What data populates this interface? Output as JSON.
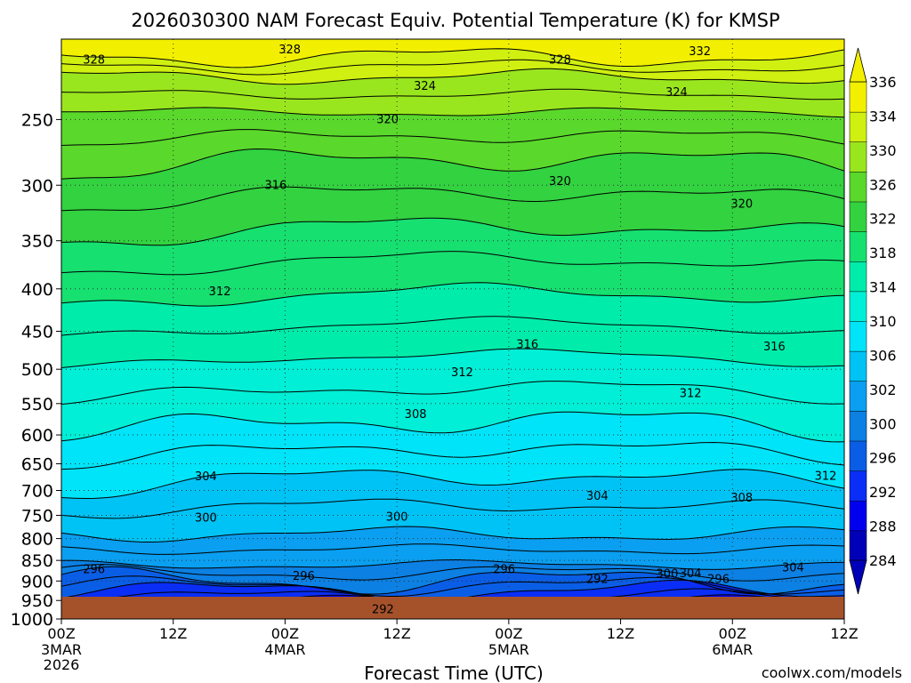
{
  "chart_data": {
    "type": "heatmap",
    "title": "2026030300 NAM Forecast Equiv. Potential Temperature (K) for KMSP",
    "xlabel": "Forecast Time (UTC)",
    "ylabel": "",
    "x_ticks": [
      {
        "label": "00Z",
        "sub": [
          "3MAR",
          "2026"
        ],
        "hour": 0
      },
      {
        "label": "12Z",
        "sub": [],
        "hour": 12
      },
      {
        "label": "00Z",
        "sub": [
          "4MAR"
        ],
        "hour": 24
      },
      {
        "label": "12Z",
        "sub": [],
        "hour": 36
      },
      {
        "label": "00Z",
        "sub": [
          "5MAR"
        ],
        "hour": 48
      },
      {
        "label": "12Z",
        "sub": [],
        "hour": 60
      },
      {
        "label": "00Z",
        "sub": [
          "6MAR"
        ],
        "hour": 72
      },
      {
        "label": "12Z",
        "sub": [],
        "hour": 84
      }
    ],
    "xlim": [
      0,
      84
    ],
    "y_ticks": [
      250,
      300,
      350,
      400,
      450,
      500,
      550,
      600,
      650,
      700,
      750,
      800,
      850,
      900,
      950,
      1000
    ],
    "ylim": [
      1000,
      200
    ],
    "y_scale": "log-pressure",
    "colorbar": {
      "labels": [
        "284",
        "288",
        "292",
        "296",
        "300",
        "302",
        "306",
        "310",
        "314",
        "318",
        "322",
        "326",
        "330",
        "334",
        "336"
      ],
      "colors": [
        "#0000b8",
        "#0000ee",
        "#0a2ef5",
        "#0a5ee6",
        "#0c80e3",
        "#0a9ff0",
        "#00c3f5",
        "#00e4f9",
        "#00efd6",
        "#00ecaa",
        "#16e070",
        "#32d240",
        "#5ad82c",
        "#9ae61e",
        "#cff011",
        "#f2f000"
      ],
      "extend": "both"
    },
    "contours": [
      {
        "label": "328",
        "x_hour": 3.5,
        "p": 212
      },
      {
        "label": "328",
        "x_hour": 24.5,
        "p": 206
      },
      {
        "label": "328",
        "x_hour": 53.5,
        "p": 212
      },
      {
        "label": "332",
        "x_hour": 68.5,
        "p": 207
      },
      {
        "label": "324",
        "x_hour": 39,
        "p": 228
      },
      {
        "label": "324",
        "x_hour": 66,
        "p": 232
      },
      {
        "label": "320",
        "x_hour": 35,
        "p": 250
      },
      {
        "label": "320",
        "x_hour": 53.5,
        "p": 297
      },
      {
        "label": "320",
        "x_hour": 73,
        "p": 316
      },
      {
        "label": "316",
        "x_hour": 23,
        "p": 300
      },
      {
        "label": "316",
        "x_hour": 50,
        "p": 467
      },
      {
        "label": "316",
        "x_hour": 76.5,
        "p": 470
      },
      {
        "label": "312",
        "x_hour": 17,
        "p": 403
      },
      {
        "label": "312",
        "x_hour": 43,
        "p": 505
      },
      {
        "label": "312",
        "x_hour": 67.5,
        "p": 535
      },
      {
        "label": "312",
        "x_hour": 82,
        "p": 673
      },
      {
        "label": "308",
        "x_hour": 38,
        "p": 567
      },
      {
        "label": "308",
        "x_hour": 73,
        "p": 715
      },
      {
        "label": "304",
        "x_hour": 15.5,
        "p": 674
      },
      {
        "label": "304",
        "x_hour": 57.5,
        "p": 711
      },
      {
        "label": "304",
        "x_hour": 67.5,
        "p": 882
      },
      {
        "label": "304",
        "x_hour": 78.5,
        "p": 868
      },
      {
        "label": "300",
        "x_hour": 15.5,
        "p": 756
      },
      {
        "label": "300",
        "x_hour": 36,
        "p": 754
      },
      {
        "label": "300",
        "x_hour": 65,
        "p": 883
      },
      {
        "label": "296",
        "x_hour": 3.5,
        "p": 872
      },
      {
        "label": "296",
        "x_hour": 26,
        "p": 888
      },
      {
        "label": "296",
        "x_hour": 47.5,
        "p": 872
      },
      {
        "label": "296",
        "x_hour": 70.5,
        "p": 896
      },
      {
        "label": "292",
        "x_hour": 57.5,
        "p": 896
      },
      {
        "label": "292",
        "x_hour": 34.5,
        "p": 974
      }
    ]
  },
  "credit": "coolwx.com/models",
  "colors": {
    "ground": "#a5522b",
    "credit": "#e8303a",
    "contour": "#000000"
  }
}
